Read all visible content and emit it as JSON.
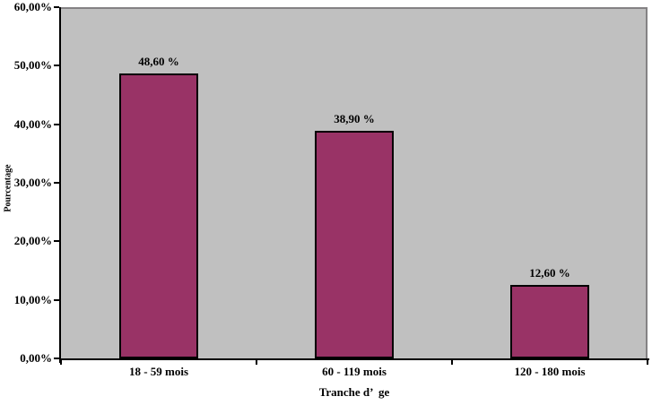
{
  "chart_data": {
    "type": "bar",
    "title": "",
    "categories": [
      "18 - 59 mois",
      "60 - 119 mois",
      "120 - 180 mois"
    ],
    "values": [
      48.6,
      38.9,
      12.6
    ],
    "value_labels": [
      "48,60 %",
      "38,90 %",
      "12,60 %"
    ],
    "xlabel": "Tranche d’  ge",
    "ylabel": "Pourcentage",
    "ylim": [
      0,
      60
    ],
    "y_ticks": [
      {
        "value": 0,
        "label": "0,00%"
      },
      {
        "value": 10,
        "label": "10,00%"
      },
      {
        "value": 20,
        "label": "20,00%"
      },
      {
        "value": 30,
        "label": "30,00%"
      },
      {
        "value": 40,
        "label": "40,00%"
      },
      {
        "value": 50,
        "label": "50,00%"
      },
      {
        "value": 60,
        "label": "60,00%"
      }
    ],
    "grid": false,
    "legend_position": "none",
    "colors": {
      "bar_fill": "#993366",
      "bar_border": "#000000",
      "plot_background": "#C0C0C0",
      "plot_border": "#848284",
      "axis": "#000000",
      "page_background": "#FFFFFF",
      "text": "#000000"
    }
  }
}
